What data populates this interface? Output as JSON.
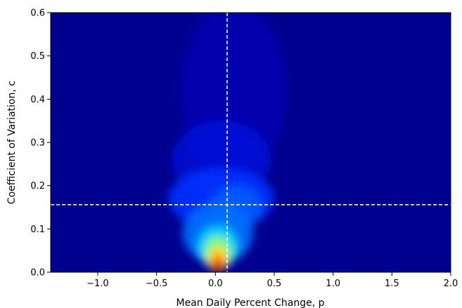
{
  "chart_data": {
    "type": "heatmap",
    "title": "",
    "xlabel": "Mean Daily Percent Change, p",
    "ylabel": "Coefficient of Variation, c",
    "xlim": [
      -1.4,
      2.0
    ],
    "ylim": [
      0.0,
      0.6
    ],
    "x_ticks": [
      "−1.0",
      "−0.5",
      "0.0",
      "0.5",
      "1.0",
      "1.5",
      "2.0"
    ],
    "y_ticks": [
      "0.0",
      "0.1",
      "0.2",
      "0.3",
      "0.4",
      "0.5",
      "0.6"
    ],
    "x_tick_values": [
      -1.0,
      -0.5,
      0.0,
      0.5,
      1.0,
      1.5,
      2.0
    ],
    "y_tick_values": [
      0.0,
      0.1,
      0.2,
      0.3,
      0.4,
      0.5,
      0.6
    ],
    "colormap": "jet",
    "grid": false,
    "density_peaks": [
      {
        "x": 0.02,
        "y": 0.015,
        "intensity": 1.0
      },
      {
        "x": 0.0,
        "y": 0.05,
        "intensity": 0.75
      },
      {
        "x": 0.05,
        "y": 0.08,
        "intensity": 0.5
      },
      {
        "x": -0.05,
        "y": 0.12,
        "intensity": 0.3
      },
      {
        "x": 0.15,
        "y": 0.15,
        "intensity": 0.25
      },
      {
        "x": 0.05,
        "y": 0.25,
        "intensity": 0.12
      }
    ],
    "reference_lines": [
      {
        "orientation": "vertical",
        "value": 0.1,
        "style": "dashed",
        "color": "#ffffff"
      },
      {
        "orientation": "horizontal",
        "value": 0.156,
        "style": "dashed",
        "color": "#ffffff"
      }
    ]
  }
}
